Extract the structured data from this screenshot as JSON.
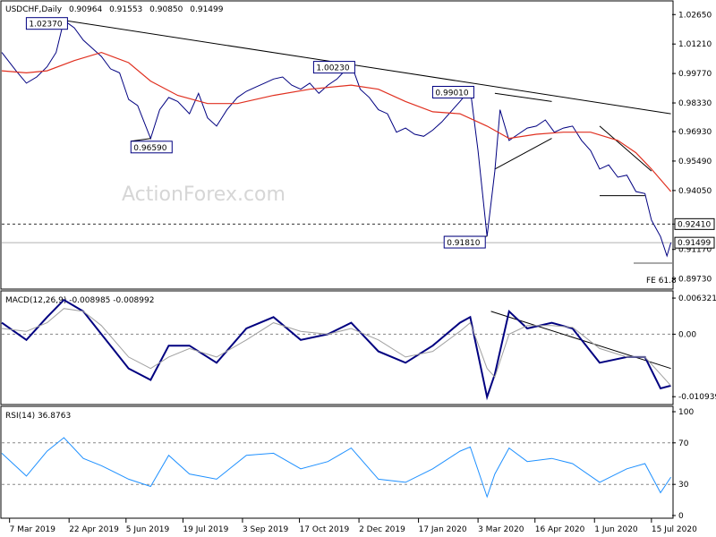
{
  "chart_data": {
    "type": "line",
    "header": {
      "symbol": "USDCHF,Daily",
      "ohlc": [
        "0.90964",
        "0.91553",
        "0.90850",
        "0.91499"
      ]
    },
    "watermark": "ActionForex.com",
    "x_ticks": [
      "7 Mar 2019",
      "22 Apr 2019",
      "5 Jun 2019",
      "19 Jul 2019",
      "3 Sep 2019",
      "17 Oct 2019",
      "2 Dec 2019",
      "17 Jan 2020",
      "3 Mar 2020",
      "16 Apr 2020",
      "1 Jun 2020",
      "15 Jul 2020"
    ],
    "price_panel": {
      "y_ticks": [
        "1.02650",
        "1.01210",
        "0.99770",
        "0.98330",
        "0.96930",
        "0.95490",
        "0.94050",
        "0.92410",
        "0.91170",
        "0.89730"
      ],
      "ylim": [
        0.8945,
        1.031
      ],
      "current_price": "0.91499",
      "support_level": "0.92410",
      "fe_label": "FE 61.8",
      "annotations": [
        {
          "text": "1.02370",
          "date": "2019-04-18"
        },
        {
          "text": "1.00230",
          "date": "2019-11-26"
        },
        {
          "text": "0.99010",
          "date": "2020-02-26"
        },
        {
          "text": "0.96590",
          "date": "2019-06-24"
        },
        {
          "text": "0.91810",
          "date": "2020-03-10"
        }
      ],
      "series": [
        {
          "name": "USDCHF close",
          "color": "#000080",
          "points": [
            [
              "2019-03-01",
              1.008
            ],
            [
              "2019-03-12",
              0.999
            ],
            [
              "2019-03-20",
              0.993
            ],
            [
              "2019-03-28",
              0.996
            ],
            [
              "2019-04-05",
              1.001
            ],
            [
              "2019-04-12",
              1.008
            ],
            [
              "2019-04-18",
              1.0237
            ],
            [
              "2019-04-26",
              1.02
            ],
            [
              "2019-05-03",
              1.014
            ],
            [
              "2019-05-10",
              1.01
            ],
            [
              "2019-05-17",
              1.006
            ],
            [
              "2019-05-24",
              1.0
            ],
            [
              "2019-05-31",
              0.998
            ],
            [
              "2019-06-07",
              0.985
            ],
            [
              "2019-06-14",
              0.982
            ],
            [
              "2019-06-24",
              0.9659
            ],
            [
              "2019-07-01",
              0.98
            ],
            [
              "2019-07-08",
              0.986
            ],
            [
              "2019-07-15",
              0.984
            ],
            [
              "2019-07-24",
              0.978
            ],
            [
              "2019-07-31",
              0.988
            ],
            [
              "2019-08-07",
              0.976
            ],
            [
              "2019-08-14",
              0.972
            ],
            [
              "2019-08-22",
              0.98
            ],
            [
              "2019-08-30",
              0.986
            ],
            [
              "2019-09-06",
              0.989
            ],
            [
              "2019-09-13",
              0.991
            ],
            [
              "2019-09-20",
              0.993
            ],
            [
              "2019-09-27",
              0.995
            ],
            [
              "2019-10-04",
              0.996
            ],
            [
              "2019-10-11",
              0.992
            ],
            [
              "2019-10-18",
              0.99
            ],
            [
              "2019-10-25",
              0.993
            ],
            [
              "2019-11-01",
              0.988
            ],
            [
              "2019-11-08",
              0.992
            ],
            [
              "2019-11-15",
              0.995
            ],
            [
              "2019-11-26",
              1.0023
            ],
            [
              "2019-12-03",
              0.99
            ],
            [
              "2019-12-10",
              0.986
            ],
            [
              "2019-12-17",
              0.98
            ],
            [
              "2019-12-24",
              0.978
            ],
            [
              "2019-12-31",
              0.969
            ],
            [
              "2020-01-07",
              0.971
            ],
            [
              "2020-01-14",
              0.968
            ],
            [
              "2020-01-21",
              0.967
            ],
            [
              "2020-01-28",
              0.97
            ],
            [
              "2020-02-04",
              0.974
            ],
            [
              "2020-02-11",
              0.979
            ],
            [
              "2020-02-18",
              0.984
            ],
            [
              "2020-02-26",
              0.9901
            ],
            [
              "2020-03-03",
              0.96
            ],
            [
              "2020-03-10",
              0.9181
            ],
            [
              "2020-03-16",
              0.95
            ],
            [
              "2020-03-20",
              0.98
            ],
            [
              "2020-03-27",
              0.965
            ],
            [
              "2020-04-03",
              0.968
            ],
            [
              "2020-04-10",
              0.971
            ],
            [
              "2020-04-17",
              0.972
            ],
            [
              "2020-04-24",
              0.975
            ],
            [
              "2020-05-01",
              0.969
            ],
            [
              "2020-05-08",
              0.971
            ],
            [
              "2020-05-15",
              0.972
            ],
            [
              "2020-05-22",
              0.965
            ],
            [
              "2020-05-29",
              0.96
            ],
            [
              "2020-06-05",
              0.951
            ],
            [
              "2020-06-12",
              0.953
            ],
            [
              "2020-06-19",
              0.947
            ],
            [
              "2020-06-26",
              0.948
            ],
            [
              "2020-07-03",
              0.94
            ],
            [
              "2020-07-10",
              0.939
            ],
            [
              "2020-07-15",
              0.926
            ],
            [
              "2020-07-22",
              0.918
            ],
            [
              "2020-07-27",
              0.9085
            ],
            [
              "2020-07-30",
              0.915
            ]
          ]
        },
        {
          "name": "moving average",
          "color": "#e03020",
          "points": [
            [
              "2019-03-01",
              0.999
            ],
            [
              "2019-03-20",
              0.998
            ],
            [
              "2019-04-05",
              0.999
            ],
            [
              "2019-04-26",
              1.004
            ],
            [
              "2019-05-17",
              1.008
            ],
            [
              "2019-06-07",
              1.003
            ],
            [
              "2019-06-24",
              0.994
            ],
            [
              "2019-07-15",
              0.987
            ],
            [
              "2019-08-07",
              0.983
            ],
            [
              "2019-08-30",
              0.983
            ],
            [
              "2019-09-27",
              0.987
            ],
            [
              "2019-10-25",
              0.99
            ],
            [
              "2019-11-26",
              0.992
            ],
            [
              "2019-12-17",
              0.99
            ],
            [
              "2020-01-07",
              0.984
            ],
            [
              "2020-01-28",
              0.979
            ],
            [
              "2020-02-18",
              0.978
            ],
            [
              "2020-03-10",
              0.972
            ],
            [
              "2020-03-27",
              0.966
            ],
            [
              "2020-04-17",
              0.968
            ],
            [
              "2020-05-08",
              0.969
            ],
            [
              "2020-05-29",
              0.969
            ],
            [
              "2020-06-19",
              0.965
            ],
            [
              "2020-07-03",
              0.959
            ],
            [
              "2020-07-15",
              0.951
            ],
            [
              "2020-07-30",
              0.94
            ]
          ]
        }
      ],
      "trendlines": [
        {
          "points": [
            [
              "2019-04-18",
              1.0237
            ],
            [
              "2020-07-30",
              0.978
            ]
          ]
        },
        {
          "points": [
            [
              "2020-03-16",
              0.988
            ],
            [
              "2020-04-29",
              0.984
            ]
          ]
        },
        {
          "points": [
            [
              "2020-03-16",
              0.951
            ],
            [
              "2020-04-29",
              0.966
            ]
          ]
        },
        {
          "points": [
            [
              "2020-06-05",
              0.972
            ],
            [
              "2020-07-15",
              0.95
            ]
          ]
        },
        {
          "points": [
            [
              "2020-06-05",
              0.938
            ],
            [
              "2020-07-10",
              0.938
            ]
          ]
        }
      ]
    },
    "macd_panel": {
      "label": "MACD(12,26,9) -0.008985 -0.008992",
      "y_ticks": [
        "0.006321",
        "0.00",
        "-0.010939"
      ],
      "ylim": [
        -0.012,
        0.0068
      ],
      "series": [
        {
          "name": "MACD",
          "color": "#000080",
          "points": [
            [
              "2019-03-01",
              0.002
            ],
            [
              "2019-03-20",
              -0.001
            ],
            [
              "2019-04-05",
              0.003
            ],
            [
              "2019-04-18",
              0.006
            ],
            [
              "2019-05-03",
              0.004
            ],
            [
              "2019-05-17",
              0.0
            ],
            [
              "2019-06-07",
              -0.006
            ],
            [
              "2019-06-24",
              -0.008
            ],
            [
              "2019-07-08",
              -0.002
            ],
            [
              "2019-07-24",
              -0.002
            ],
            [
              "2019-08-14",
              -0.005
            ],
            [
              "2019-09-06",
              0.001
            ],
            [
              "2019-09-27",
              0.003
            ],
            [
              "2019-10-18",
              -0.001
            ],
            [
              "2019-11-08",
              0.0
            ],
            [
              "2019-11-26",
              0.002
            ],
            [
              "2019-12-17",
              -0.003
            ],
            [
              "2020-01-07",
              -0.005
            ],
            [
              "2020-01-28",
              -0.002
            ],
            [
              "2020-02-18",
              0.002
            ],
            [
              "2020-02-26",
              0.003
            ],
            [
              "2020-03-10",
              -0.011
            ],
            [
              "2020-03-16",
              -0.007
            ],
            [
              "2020-03-27",
              0.004
            ],
            [
              "2020-04-10",
              0.001
            ],
            [
              "2020-04-29",
              0.002
            ],
            [
              "2020-05-15",
              0.001
            ],
            [
              "2020-06-05",
              -0.005
            ],
            [
              "2020-06-26",
              -0.004
            ],
            [
              "2020-07-10",
              -0.004
            ],
            [
              "2020-07-22",
              -0.0095
            ],
            [
              "2020-07-30",
              -0.009
            ]
          ]
        },
        {
          "name": "Signal",
          "color": "#a0a0a0",
          "points": [
            [
              "2019-03-01",
              0.001
            ],
            [
              "2019-03-20",
              0.0005
            ],
            [
              "2019-04-05",
              0.002
            ],
            [
              "2019-04-18",
              0.0045
            ],
            [
              "2019-05-03",
              0.004
            ],
            [
              "2019-05-17",
              0.0015
            ],
            [
              "2019-06-07",
              -0.004
            ],
            [
              "2019-06-24",
              -0.006
            ],
            [
              "2019-07-08",
              -0.004
            ],
            [
              "2019-07-24",
              -0.0025
            ],
            [
              "2019-08-14",
              -0.004
            ],
            [
              "2019-09-06",
              -0.001
            ],
            [
              "2019-09-27",
              0.002
            ],
            [
              "2019-10-18",
              0.0005
            ],
            [
              "2019-11-08",
              0.0
            ],
            [
              "2019-11-26",
              0.001
            ],
            [
              "2019-12-17",
              -0.001
            ],
            [
              "2020-01-07",
              -0.004
            ],
            [
              "2020-01-28",
              -0.003
            ],
            [
              "2020-02-18",
              0.0005
            ],
            [
              "2020-02-26",
              0.002
            ],
            [
              "2020-03-10",
              -0.006
            ],
            [
              "2020-03-16",
              -0.0075
            ],
            [
              "2020-03-27",
              0.0
            ],
            [
              "2020-04-10",
              0.0015
            ],
            [
              "2020-04-29",
              0.0015
            ],
            [
              "2020-05-15",
              0.0012
            ],
            [
              "2020-06-05",
              -0.0025
            ],
            [
              "2020-06-26",
              -0.004
            ],
            [
              "2020-07-10",
              -0.004
            ],
            [
              "2020-07-22",
              -0.007
            ],
            [
              "2020-07-30",
              -0.009
            ]
          ]
        }
      ],
      "trendline": {
        "points": [
          [
            "2020-03-13",
            0.004
          ],
          [
            "2020-07-30",
            -0.006
          ]
        ]
      }
    },
    "rsi_panel": {
      "label": "RSI(14) 36.8763",
      "y_ticks": [
        "100",
        "70",
        "30",
        "0"
      ],
      "ylim": [
        0,
        100
      ],
      "levels": [
        70,
        30
      ],
      "series": [
        {
          "name": "RSI",
          "color": "#1e90ff",
          "points": [
            [
              "2019-03-01",
              60
            ],
            [
              "2019-03-20",
              38
            ],
            [
              "2019-04-05",
              62
            ],
            [
              "2019-04-18",
              75
            ],
            [
              "2019-05-03",
              55
            ],
            [
              "2019-05-17",
              48
            ],
            [
              "2019-06-07",
              35
            ],
            [
              "2019-06-24",
              28
            ],
            [
              "2019-07-08",
              58
            ],
            [
              "2019-07-24",
              40
            ],
            [
              "2019-08-14",
              35
            ],
            [
              "2019-09-06",
              58
            ],
            [
              "2019-09-27",
              60
            ],
            [
              "2019-10-18",
              45
            ],
            [
              "2019-11-08",
              52
            ],
            [
              "2019-11-26",
              65
            ],
            [
              "2019-12-17",
              35
            ],
            [
              "2020-01-07",
              32
            ],
            [
              "2020-01-28",
              45
            ],
            [
              "2020-02-18",
              62
            ],
            [
              "2020-02-26",
              66
            ],
            [
              "2020-03-10",
              18
            ],
            [
              "2020-03-16",
              40
            ],
            [
              "2020-03-27",
              65
            ],
            [
              "2020-04-10",
              52
            ],
            [
              "2020-04-29",
              55
            ],
            [
              "2020-05-15",
              50
            ],
            [
              "2020-06-05",
              32
            ],
            [
              "2020-06-26",
              45
            ],
            [
              "2020-07-10",
              50
            ],
            [
              "2020-07-22",
              22
            ],
            [
              "2020-07-30",
              37
            ]
          ]
        }
      ]
    }
  }
}
